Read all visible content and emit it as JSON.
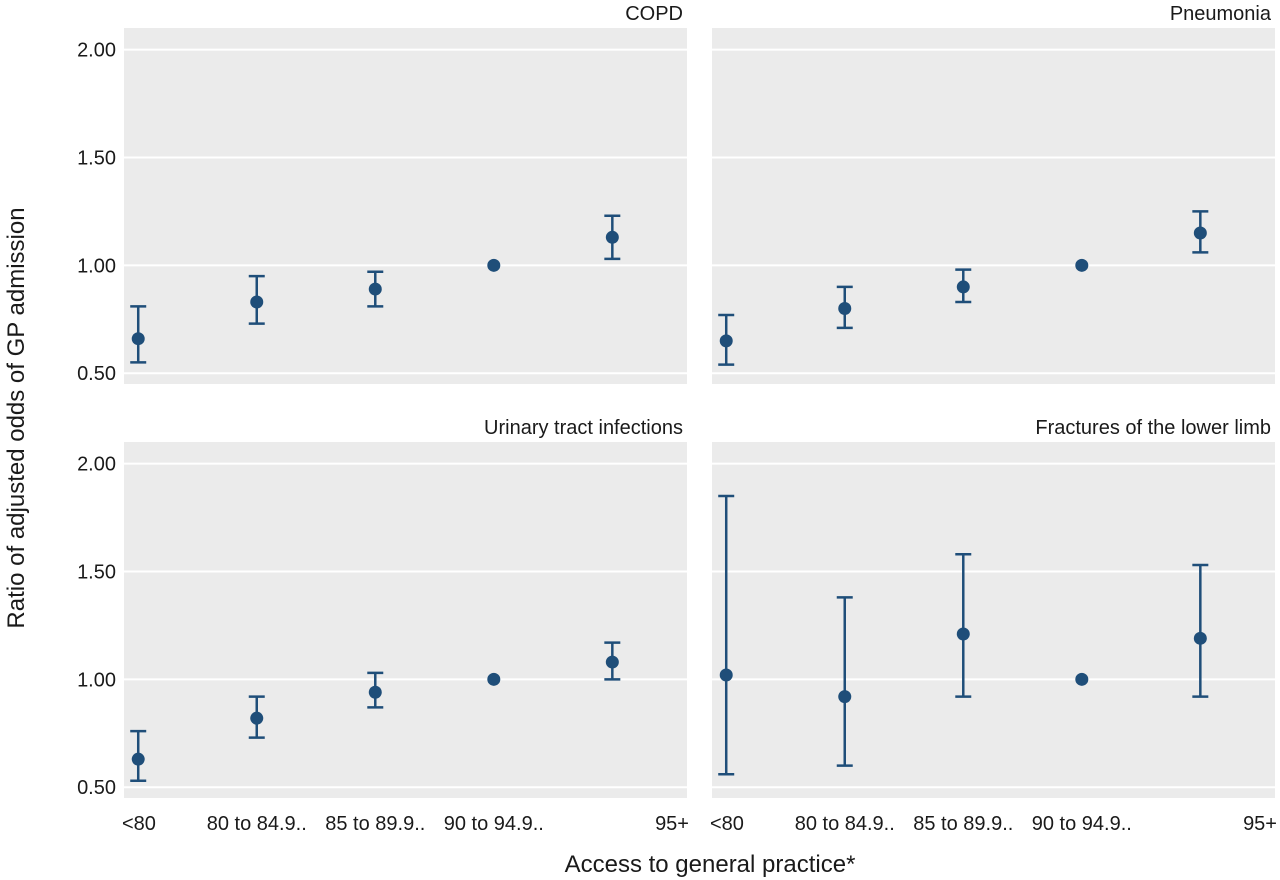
{
  "chart_data": {
    "type": "scatter",
    "subtype": "point-range (estimate with 95% CI) facet grid",
    "xlabel": "Access to general practice*",
    "ylabel": "Ratio of adjusted odds of GP admission",
    "categories": [
      "<80",
      "80 to 84.9..",
      "85 to 89.9..",
      "90 to 94.9..",
      "95+"
    ],
    "ylim": [
      0.45,
      2.1
    ],
    "yticks": [
      0.5,
      1.0,
      1.5,
      2.0
    ],
    "ytick_labels": [
      "0.50",
      "1.00",
      "1.50",
      "2.00"
    ],
    "grid": true,
    "background": "#ebebeb",
    "marker_color": "#1f4e79",
    "panels": [
      {
        "title": "COPD",
        "series": [
          {
            "estimate": [
              0.66,
              0.83,
              0.89,
              1.0,
              1.13
            ],
            "lower": [
              0.55,
              0.73,
              0.81,
              1.0,
              1.03
            ],
            "upper": [
              0.81,
              0.95,
              0.97,
              1.0,
              1.23
            ]
          }
        ]
      },
      {
        "title": "Pneumonia",
        "series": [
          {
            "estimate": [
              0.65,
              0.8,
              0.9,
              1.0,
              1.15
            ],
            "lower": [
              0.54,
              0.71,
              0.83,
              1.0,
              1.06
            ],
            "upper": [
              0.77,
              0.9,
              0.98,
              1.0,
              1.25
            ]
          }
        ]
      },
      {
        "title": "Urinary tract infections",
        "series": [
          {
            "estimate": [
              0.63,
              0.82,
              0.94,
              1.0,
              1.08
            ],
            "lower": [
              0.53,
              0.73,
              0.87,
              1.0,
              1.0
            ],
            "upper": [
              0.76,
              0.92,
              1.03,
              1.0,
              1.17
            ]
          }
        ]
      },
      {
        "title": "Fractures of the lower limb",
        "series": [
          {
            "estimate": [
              1.02,
              0.92,
              1.21,
              1.0,
              1.19
            ],
            "lower": [
              0.56,
              0.6,
              0.92,
              1.0,
              0.92
            ],
            "upper": [
              1.85,
              1.38,
              1.58,
              1.0,
              1.53
            ]
          }
        ]
      }
    ]
  }
}
